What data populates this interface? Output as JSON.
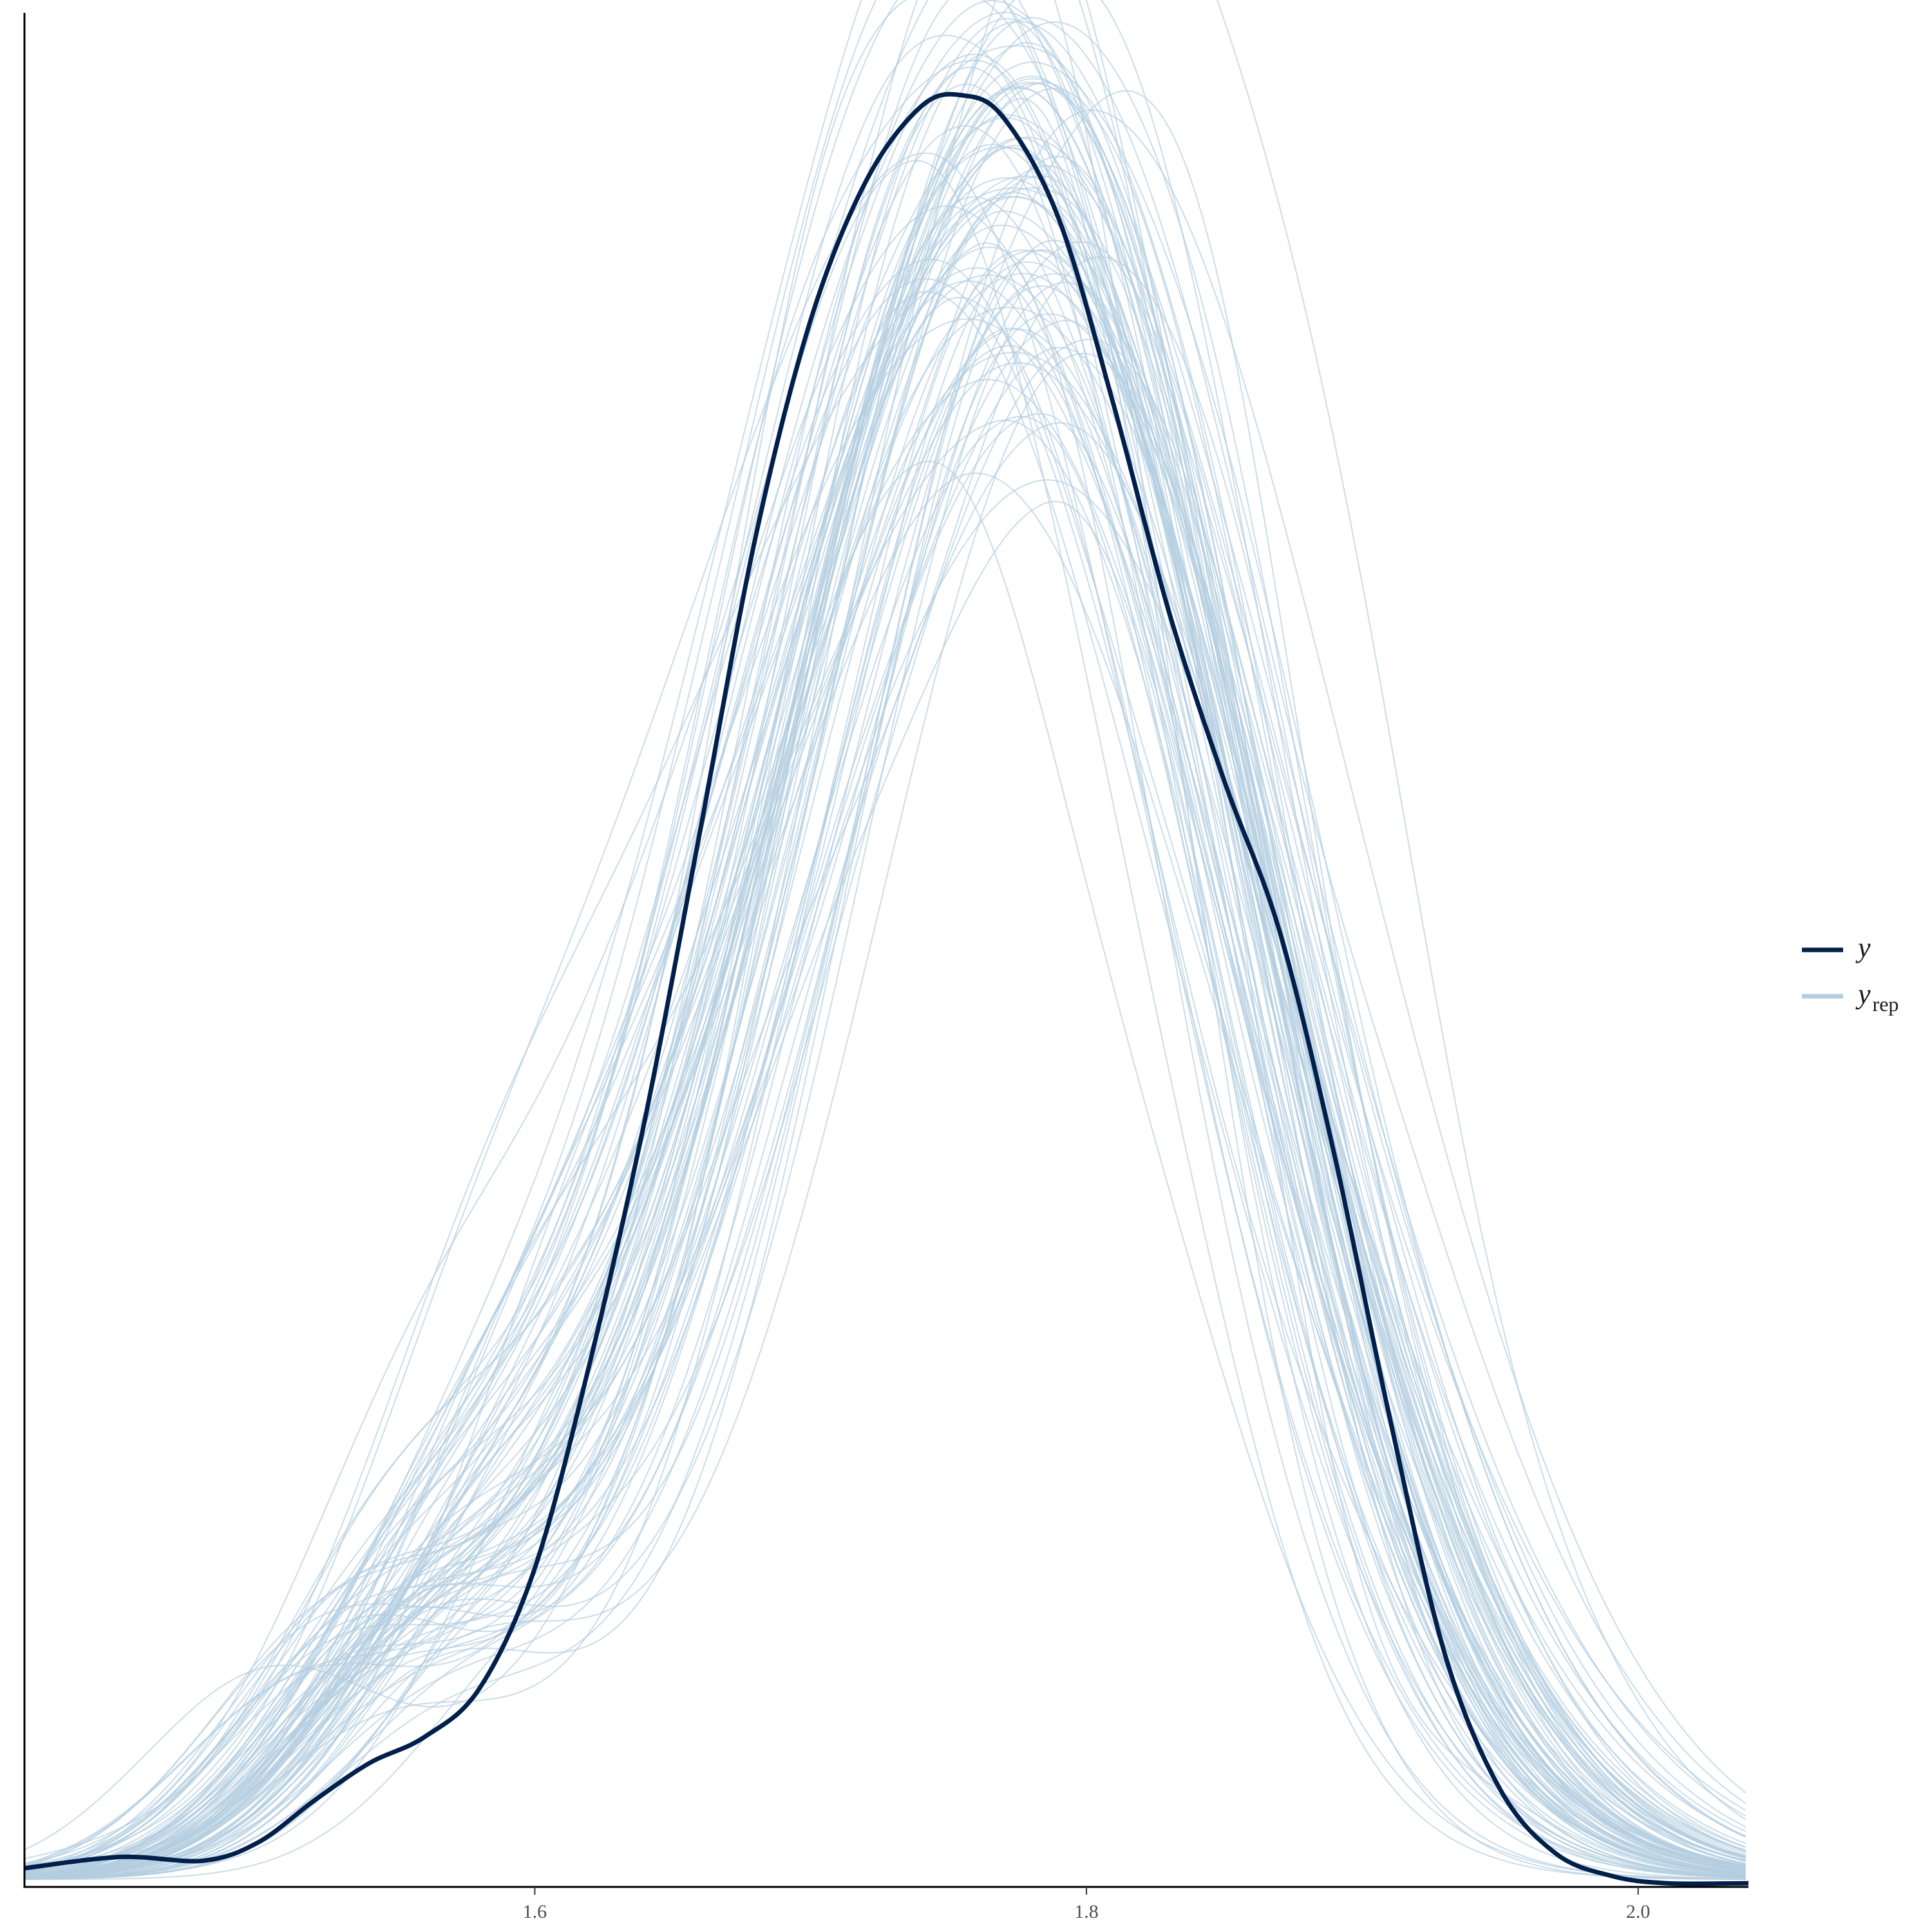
{
  "chart_data": {
    "type": "line",
    "title": "",
    "xlabel": "",
    "ylabel": "",
    "xlim": [
      1.415,
      2.04
    ],
    "ylim": [
      0,
      5.0
    ],
    "x_ticks": [
      {
        "value": 1.6,
        "label": "1.6"
      },
      {
        "value": 1.8,
        "label": "1.8"
      },
      {
        "value": 2.0,
        "label": "2.0"
      }
    ],
    "grid": false,
    "legend": {
      "placement": "right",
      "entries": [
        {
          "key": "y",
          "label": "y",
          "sub": ""
        },
        {
          "key": "yrep",
          "label": "y",
          "sub": "rep"
        }
      ]
    },
    "colors": {
      "y": "#011f4b",
      "yrep": "#b3cde0"
    },
    "series": [
      {
        "name": "y",
        "x": [
          1.415,
          1.45,
          1.48,
          1.5,
          1.52,
          1.54,
          1.56,
          1.58,
          1.6,
          1.62,
          1.64,
          1.66,
          1.68,
          1.7,
          1.72,
          1.74,
          1.755,
          1.77,
          1.79,
          1.81,
          1.83,
          1.85,
          1.87,
          1.89,
          1.91,
          1.93,
          1.95,
          1.97,
          1.99,
          2.01,
          2.04
        ],
        "y": [
          0.05,
          0.08,
          0.07,
          0.12,
          0.23,
          0.33,
          0.4,
          0.53,
          0.85,
          1.4,
          2.05,
          2.82,
          3.6,
          4.18,
          4.55,
          4.75,
          4.78,
          4.72,
          4.45,
          3.95,
          3.4,
          2.95,
          2.55,
          1.95,
          1.25,
          0.62,
          0.26,
          0.09,
          0.03,
          0.01,
          0.01
        ]
      }
    ],
    "replicates": {
      "name": "yrep",
      "count": 100,
      "peak_x_range": [
        1.71,
        1.84
      ],
      "peak_y_range": [
        3.3,
        5.65
      ]
    }
  }
}
